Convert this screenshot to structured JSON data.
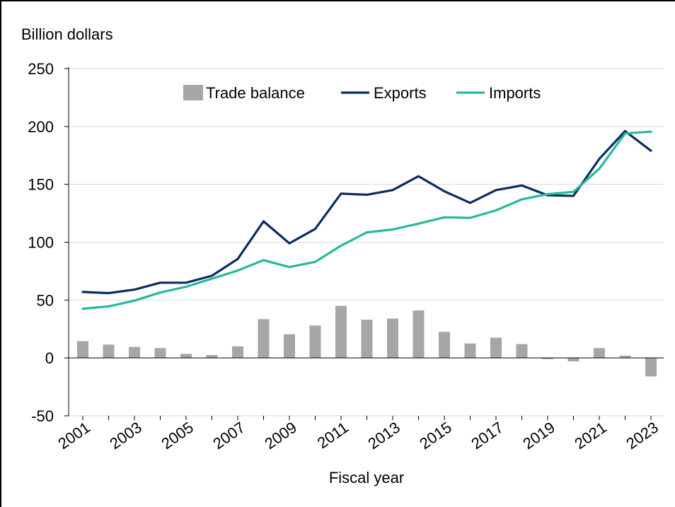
{
  "chart_data": {
    "type": "bar+line",
    "ylabel": "Billion dollars",
    "xlabel": "Fiscal year",
    "ylim": [
      -50,
      250
    ],
    "yticks": [
      -50,
      0,
      50,
      100,
      150,
      200,
      250
    ],
    "x": [
      2001,
      2002,
      2003,
      2004,
      2005,
      2006,
      2007,
      2008,
      2009,
      2010,
      2011,
      2012,
      2013,
      2014,
      2015,
      2016,
      2017,
      2018,
      2019,
      2020,
      2021,
      2022,
      2023
    ],
    "xtick_labels": [
      "2001",
      "2003",
      "2005",
      "2007",
      "2009",
      "2011",
      "2013",
      "2015",
      "2017",
      "2019",
      "2021",
      "2023"
    ],
    "grid": "horizontal",
    "legend_position": "top-center",
    "series": [
      {
        "name": "Trade balance",
        "kind": "bar",
        "color": "#a6a6a6",
        "values": [
          14.5,
          11.5,
          9.5,
          8.5,
          3.5,
          2.5,
          10,
          33.5,
          20.5,
          28,
          45,
          33,
          34,
          41,
          22.5,
          12.5,
          17.5,
          12,
          -1,
          -3,
          8.5,
          2,
          -16
        ]
      },
      {
        "name": "Exports",
        "kind": "line",
        "color": "#0b2c62",
        "values": [
          57,
          56,
          59,
          65,
          65,
          71,
          85.5,
          118,
          99,
          111.5,
          142,
          141,
          145,
          157,
          144,
          134,
          145,
          149,
          140.5,
          140,
          172,
          196,
          179
        ]
      },
      {
        "name": "Imports",
        "kind": "line",
        "color": "#26b99a",
        "values": [
          42.5,
          44.5,
          49.5,
          56.5,
          61.5,
          68.5,
          75.5,
          84.5,
          78.5,
          83,
          97,
          108.5,
          111,
          116,
          121.5,
          121,
          127.5,
          137,
          141.5,
          143.5,
          163.5,
          194,
          195.5
        ]
      }
    ]
  }
}
